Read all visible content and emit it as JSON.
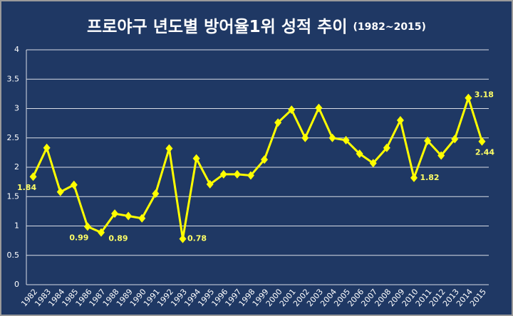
{
  "chart_data": {
    "type": "line",
    "title": "프로야구 년도별 방어율1위 성적 추이",
    "subtitle": "(1982~2015)",
    "categories": [
      "1982",
      "1983",
      "1984",
      "1985",
      "1986",
      "1987",
      "1988",
      "1989",
      "1990",
      "1991",
      "1992",
      "1993",
      "1994",
      "1995",
      "1996",
      "1997",
      "1998",
      "1999",
      "2000",
      "2001",
      "2002",
      "2003",
      "2004",
      "2005",
      "2006",
      "2007",
      "2008",
      "2009",
      "2010",
      "2011",
      "2012",
      "2013",
      "2014",
      "2015"
    ],
    "values": [
      1.84,
      2.33,
      1.58,
      1.7,
      0.99,
      0.89,
      1.21,
      1.17,
      1.13,
      1.55,
      2.32,
      0.78,
      2.15,
      1.71,
      1.88,
      1.88,
      1.86,
      2.13,
      2.76,
      2.98,
      2.5,
      3.01,
      2.5,
      2.46,
      2.23,
      2.07,
      2.33,
      2.8,
      1.82,
      2.45,
      2.2,
      2.48,
      3.18,
      2.44
    ],
    "value_labels": [
      "1.84",
      null,
      null,
      null,
      "0.99",
      "0.89",
      null,
      null,
      null,
      null,
      null,
      "0.78",
      null,
      null,
      null,
      null,
      null,
      null,
      null,
      null,
      null,
      null,
      null,
      null,
      null,
      null,
      null,
      null,
      "1.82",
      null,
      null,
      null,
      "3.18",
      "2.44"
    ],
    "color": "#ffff00",
    "ylim": [
      0,
      4
    ],
    "yticks": [
      0,
      0.5,
      1,
      1.5,
      2,
      2.5,
      3,
      3.5,
      4
    ],
    "grid": true
  }
}
